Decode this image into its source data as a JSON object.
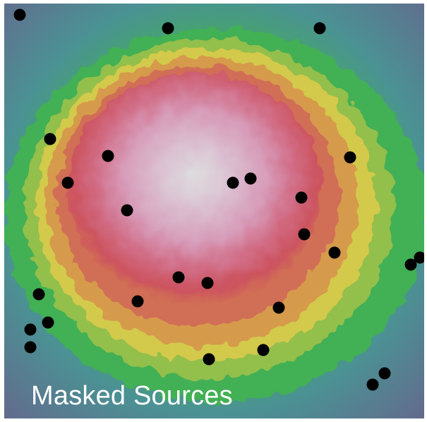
{
  "caption": "Masked Sources",
  "colormap": [
    "#5b6493",
    "#3a9a9c",
    "#22b35f",
    "#2fc246",
    "#9bd63a",
    "#f1e43a",
    "#f5a53a",
    "#ee6a48",
    "#e84655",
    "#ef6b8e",
    "#f6a8cf",
    "#fbd8ef",
    "#ffffff"
  ],
  "mask_color": "#000000"
}
